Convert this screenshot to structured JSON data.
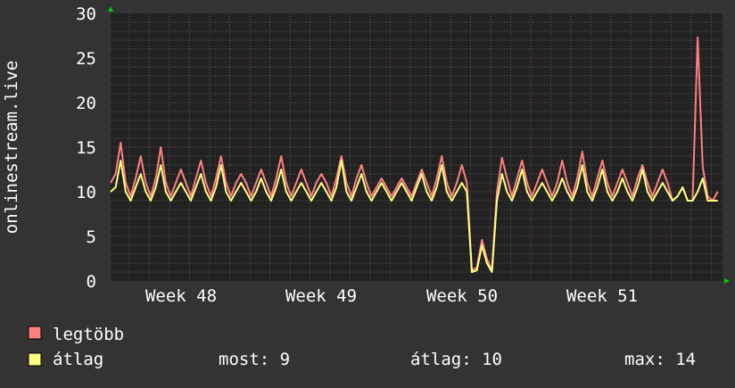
{
  "chart_data": {
    "type": "line",
    "title": "",
    "ylabel": "onlinestream.live",
    "xlabel": "",
    "ylim": [
      0,
      30
    ],
    "y_ticks": [
      "0",
      "5",
      "10",
      "15",
      "20",
      "25",
      "30"
    ],
    "x_ticks": [
      "Week 48",
      "Week 49",
      "Week 50",
      "Week 51"
    ],
    "grid": true,
    "sampling": "4 samples per day, evenly spaced over about 30.5 days",
    "series": [
      {
        "name": "legtöbb",
        "color": "#ff8080",
        "values": [
          11,
          12,
          15.5,
          11,
          9.5,
          11.5,
          14,
          11,
          9.5,
          11.5,
          15,
          11,
          9.5,
          11,
          12.5,
          11,
          9.5,
          11.5,
          13.5,
          11,
          9.5,
          11.5,
          14,
          11,
          9.5,
          11,
          12,
          11,
          9.5,
          11,
          12.5,
          11,
          9.5,
          11.5,
          14,
          11,
          9.5,
          11,
          12.5,
          11,
          9.5,
          11,
          12,
          11,
          9.5,
          11.5,
          14,
          11,
          9.5,
          11.5,
          13,
          11,
          9.5,
          10.5,
          11.5,
          10.5,
          9.5,
          10.5,
          11.5,
          10.5,
          9.5,
          11,
          12.5,
          11,
          9.5,
          11.5,
          14,
          11,
          9.5,
          11,
          13,
          11,
          1.2,
          1.5,
          4.6,
          2.5,
          1.2,
          10,
          13.8,
          11.5,
          9.5,
          11.5,
          13.5,
          11,
          9.5,
          11,
          12.5,
          11,
          9.5,
          11,
          13.5,
          11,
          9.5,
          11.5,
          14.5,
          11,
          9.5,
          11.5,
          13.5,
          11,
          9.5,
          11,
          12.5,
          11,
          9.5,
          11.5,
          13,
          11,
          9.5,
          11,
          12.5,
          11,
          9,
          9.5,
          10.5,
          9,
          9,
          27.3,
          12.8,
          9.5,
          9,
          10
        ]
      },
      {
        "name": "átlag",
        "color": "#ffff80",
        "values": [
          10,
          10.5,
          13.5,
          10,
          9,
          10.5,
          12,
          10,
          9,
          10.5,
          13,
          10,
          9,
          10,
          11,
          10,
          9,
          10.5,
          12,
          10,
          9,
          10.5,
          13,
          10,
          9,
          10,
          11,
          10,
          9,
          10,
          11.5,
          10,
          9,
          10.5,
          12.5,
          10,
          9,
          10,
          11,
          10,
          9,
          10,
          11,
          10,
          9,
          10.5,
          13.5,
          10,
          9,
          10.5,
          12,
          10,
          9,
          10,
          11,
          10,
          9,
          10,
          11,
          10,
          9,
          10.5,
          12,
          10,
          9,
          10.5,
          13,
          10,
          9,
          10,
          11,
          10,
          1,
          1.2,
          4,
          2,
          1,
          9,
          12,
          10,
          9,
          10.5,
          12.5,
          10,
          9,
          10,
          11,
          10,
          9,
          10,
          11.5,
          10,
          9,
          10.5,
          13,
          10,
          9,
          10.5,
          12.5,
          10,
          9,
          10,
          11.5,
          10,
          9,
          10.5,
          12.5,
          10,
          9,
          10,
          11,
          10,
          9,
          9.5,
          10.5,
          9,
          9,
          10,
          11.5,
          9,
          9,
          9
        ]
      }
    ]
  },
  "legend": {
    "max_label": "legtöbb",
    "avg_label": "átlag",
    "current": "most: 9",
    "average": "átlag: 10",
    "maximum": "max: 14"
  },
  "colors": {
    "background": "#333333",
    "plot_background": "#222222",
    "minor_grid": "#555555",
    "major_grid": "#7a4040",
    "axis_arrow": "#00cc00"
  }
}
